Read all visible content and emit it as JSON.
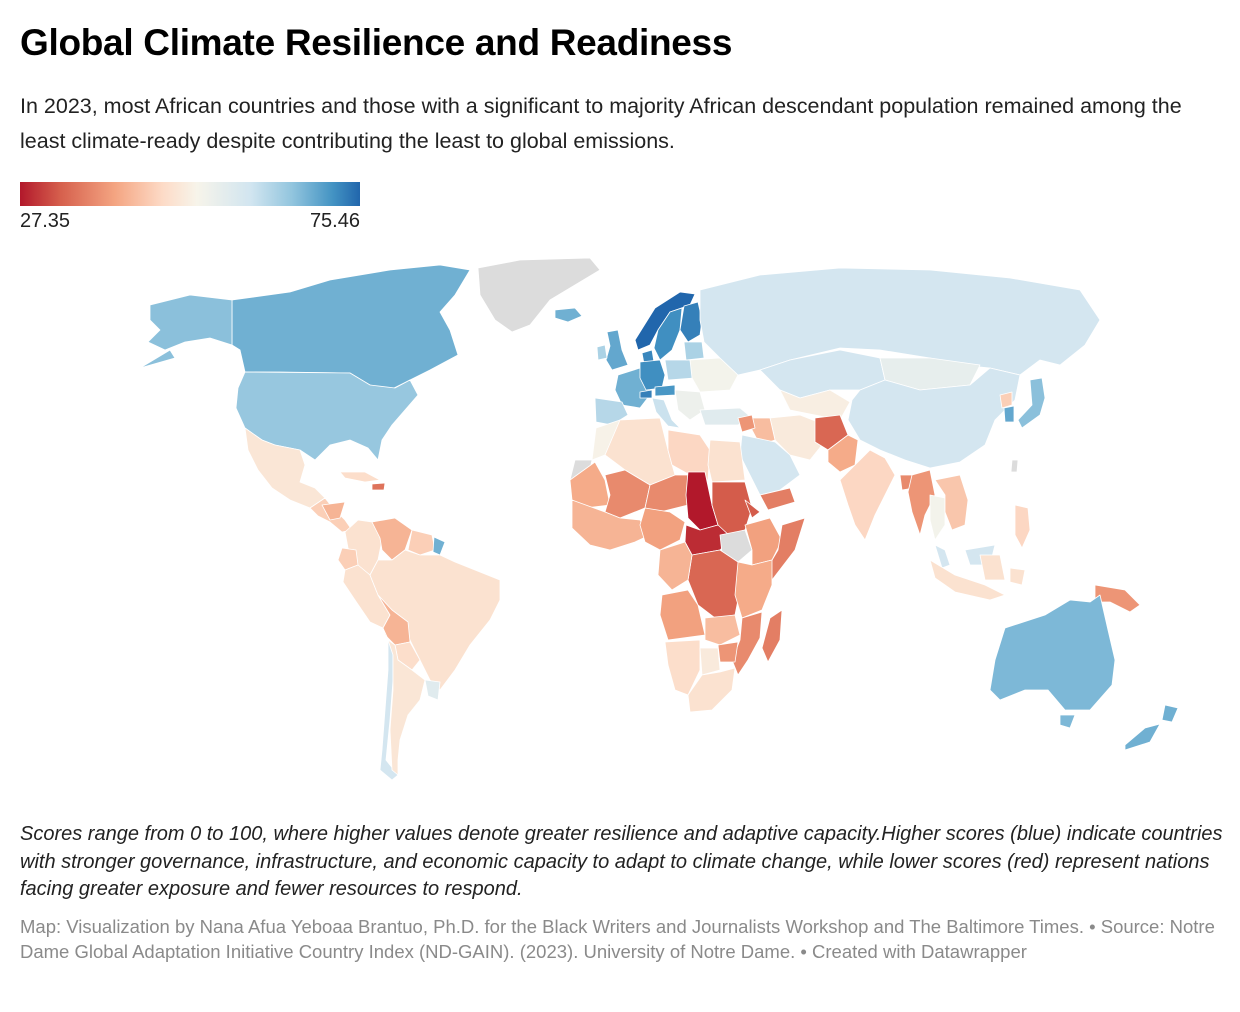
{
  "header": {
    "title": "Global Climate Resilience and Readiness",
    "subtitle": "In 2023, most African countries and those with a significant to majority African descendant population remained among the least climate-ready despite contributing the least to global emissions."
  },
  "legend": {
    "min_label": "27.35",
    "max_label": "75.46",
    "min": 27.35,
    "max": 75.46,
    "colors": [
      "#b2182b",
      "#d6604d",
      "#f4a582",
      "#fddbc7",
      "#f7f4ea",
      "#d1e5f0",
      "#92c5de",
      "#4393c3",
      "#2166ac"
    ],
    "no_data_color": "#dcdcdc"
  },
  "chart_data": {
    "type": "choropleth",
    "title": "Global Climate Resilience and Readiness",
    "metric": "ND-GAIN Country Index score (2023)",
    "scale": {
      "min": 27.35,
      "max": 75.46,
      "palette": "diverging red-to-blue"
    },
    "regions": [
      {
        "id": "greenland",
        "name": "Greenland",
        "value": null
      },
      {
        "id": "canada",
        "name": "Canada",
        "value": 66
      },
      {
        "id": "alaska",
        "name": "United States (Alaska)",
        "value": 64
      },
      {
        "id": "usa",
        "name": "United States",
        "value": 63
      },
      {
        "id": "mexico",
        "name": "Mexico",
        "value": 48
      },
      {
        "id": "central-america",
        "name": "Central America",
        "value": 44
      },
      {
        "id": "honduras-nicaragua",
        "name": "Honduras / Nicaragua",
        "value": 41
      },
      {
        "id": "cuba",
        "name": "Cuba",
        "value": 46
      },
      {
        "id": "haiti",
        "name": "Haiti",
        "value": 35
      },
      {
        "id": "colombia",
        "name": "Colombia",
        "value": 47
      },
      {
        "id": "venezuela",
        "name": "Venezuela",
        "value": 41
      },
      {
        "id": "guyana-suriname",
        "name": "Guyana / Suriname",
        "value": 44
      },
      {
        "id": "french-guiana",
        "name": "French Guiana",
        "value": 66
      },
      {
        "id": "ecuador",
        "name": "Ecuador",
        "value": 44
      },
      {
        "id": "peru",
        "name": "Peru",
        "value": 47
      },
      {
        "id": "brazil",
        "name": "Brazil",
        "value": 47
      },
      {
        "id": "bolivia",
        "name": "Bolivia",
        "value": 41
      },
      {
        "id": "paraguay",
        "name": "Paraguay",
        "value": 46
      },
      {
        "id": "chile",
        "name": "Chile",
        "value": 57
      },
      {
        "id": "argentina",
        "name": "Argentina",
        "value": 48
      },
      {
        "id": "uruguay",
        "name": "Uruguay",
        "value": 55
      },
      {
        "id": "iceland",
        "name": "Iceland",
        "value": 66
      },
      {
        "id": "uk",
        "name": "United Kingdom",
        "value": 67
      },
      {
        "id": "ireland",
        "name": "Ireland",
        "value": 61
      },
      {
        "id": "norway",
        "name": "Norway",
        "value": 75.46
      },
      {
        "id": "sweden",
        "name": "Sweden",
        "value": 70
      },
      {
        "id": "finland",
        "name": "Finland",
        "value": 72
      },
      {
        "id": "denmark",
        "name": "Denmark",
        "value": 71
      },
      {
        "id": "france",
        "name": "France",
        "value": 66
      },
      {
        "id": "germany",
        "name": "Germany",
        "value": 70
      },
      {
        "id": "switzerland",
        "name": "Switzerland",
        "value": 72
      },
      {
        "id": "austria",
        "name": "Austria",
        "value": 69
      },
      {
        "id": "iberia",
        "name": "Spain / Portugal",
        "value": 60
      },
      {
        "id": "italy",
        "name": "Italy",
        "value": 58
      },
      {
        "id": "poland",
        "name": "Poland",
        "value": 60
      },
      {
        "id": "baltics",
        "name": "Baltic states",
        "value": 61
      },
      {
        "id": "eastern-europe",
        "name": "Ukraine / Belarus / Moldova",
        "value": 52
      },
      {
        "id": "balkans",
        "name": "Balkans",
        "value": 53
      },
      {
        "id": "turkey",
        "name": "Turkey",
        "value": 55
      },
      {
        "id": "russia",
        "name": "Russia",
        "value": 57
      },
      {
        "id": "kazakhstan",
        "name": "Kazakhstan",
        "value": 57
      },
      {
        "id": "mongolia",
        "name": "Mongolia",
        "value": 54
      },
      {
        "id": "china",
        "name": "China",
        "value": 57
      },
      {
        "id": "north-korea",
        "name": "North Korea",
        "value": 44
      },
      {
        "id": "south-korea",
        "name": "South Korea",
        "value": 67
      },
      {
        "id": "japan",
        "name": "Japan",
        "value": 64
      },
      {
        "id": "central-asia",
        "name": "Central Asia",
        "value": 50
      },
      {
        "id": "iran",
        "name": "Iran",
        "value": 49
      },
      {
        "id": "iraq-syria",
        "name": "Iraq / Syria",
        "value": 42
      },
      {
        "id": "syria",
        "name": "Syria",
        "value": 38
      },
      {
        "id": "saudi-arabia",
        "name": "Saudi Arabia",
        "value": 57
      },
      {
        "id": "yemen",
        "name": "Yemen",
        "value": 36
      },
      {
        "id": "afghanistan",
        "name": "Afghanistan",
        "value": 34
      },
      {
        "id": "pakistan",
        "name": "Pakistan",
        "value": 40
      },
      {
        "id": "india",
        "name": "India",
        "value": 45
      },
      {
        "id": "bangladesh",
        "name": "Bangladesh",
        "value": 37
      },
      {
        "id": "myanmar",
        "name": "Myanmar",
        "value": 38
      },
      {
        "id": "thailand",
        "name": "Thailand",
        "value": 52
      },
      {
        "id": "indochina",
        "name": "Laos / Cambodia / Vietnam",
        "value": 43
      },
      {
        "id": "malaysia",
        "name": "Malaysia",
        "value": 57
      },
      {
        "id": "indonesia",
        "name": "Indonesia",
        "value": 47
      },
      {
        "id": "philippines",
        "name": "Philippines",
        "value": 45
      },
      {
        "id": "taiwan",
        "name": "Taiwan",
        "value": null
      },
      {
        "id": "png",
        "name": "Papua New Guinea",
        "value": 38
      },
      {
        "id": "australia",
        "name": "Australia",
        "value": 65
      },
      {
        "id": "new-zealand",
        "name": "New Zealand",
        "value": 66
      },
      {
        "id": "morocco",
        "name": "Morocco",
        "value": 51
      },
      {
        "id": "western-sahara",
        "name": "Western Sahara",
        "value": null
      },
      {
        "id": "algeria",
        "name": "Algeria",
        "value": 47
      },
      {
        "id": "libya",
        "name": "Libya",
        "value": 45
      },
      {
        "id": "egypt",
        "name": "Egypt",
        "value": 47
      },
      {
        "id": "mauritania",
        "name": "Mauritania",
        "value": 40
      },
      {
        "id": "mali",
        "name": "Mali",
        "value": 37
      },
      {
        "id": "niger",
        "name": "Niger",
        "value": 37
      },
      {
        "id": "chad",
        "name": "Chad",
        "value": 27.35
      },
      {
        "id": "sudan",
        "name": "Sudan",
        "value": 33
      },
      {
        "id": "eritrea",
        "name": "Eritrea",
        "value": 33
      },
      {
        "id": "west-africa-coast",
        "name": "Coastal West Africa",
        "value": 41
      },
      {
        "id": "nigeria",
        "name": "Nigeria",
        "value": 39
      },
      {
        "id": "car",
        "name": "Central African Republic",
        "value": 29
      },
      {
        "id": "south-sudan",
        "name": "South Sudan",
        "value": null
      },
      {
        "id": "ethiopia",
        "name": "Ethiopia",
        "value": 39
      },
      {
        "id": "somalia",
        "name": "Somalia",
        "value": 36
      },
      {
        "id": "drc",
        "name": "DR Congo",
        "value": 34
      },
      {
        "id": "gabon-congo",
        "name": "Gabon / Congo / Cameroon",
        "value": 41
      },
      {
        "id": "east-africa",
        "name": "Kenya / Uganda / Tanzania",
        "value": 40
      },
      {
        "id": "angola",
        "name": "Angola",
        "value": 39
      },
      {
        "id": "zambia",
        "name": "Zambia",
        "value": 42
      },
      {
        "id": "mozambique",
        "name": "Mozambique",
        "value": 37
      },
      {
        "id": "zimbabwe",
        "name": "Zimbabwe",
        "value": 38
      },
      {
        "id": "namibia",
        "name": "Namibia",
        "value": 46
      },
      {
        "id": "botswana",
        "name": "Botswana",
        "value": 49
      },
      {
        "id": "south-africa",
        "name": "South Africa",
        "value": 47
      },
      {
        "id": "madagascar",
        "name": "Madagascar",
        "value": 36
      }
    ]
  },
  "footer": {
    "notes": "Scores range from 0 to 100, where higher values denote greater resilience and adaptive capacity.Higher scores (blue) indicate countries with stronger governance, infrastructure, and economic capacity to adapt to climate change, while lower scores (red) represent nations facing greater exposure and fewer resources to respond.",
    "byline": "Map: Visualization by Nana Afua Yeboaa Brantuo, Ph.D. for the Black Writers and Journalists Workshop and The Baltimore Times. • Source: Notre Dame Global Adaptation Initiative Country Index (ND-GAIN). (2023). University of Notre Dame. • Created with Datawrapper"
  }
}
